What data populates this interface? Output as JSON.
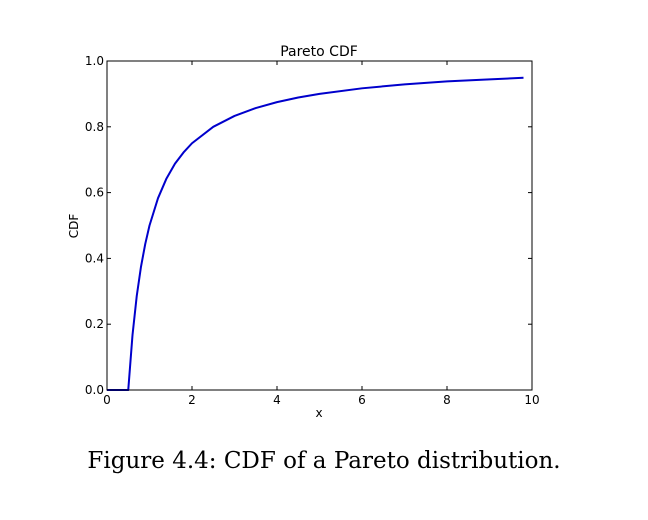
{
  "caption": "Figure 4.4: CDF of a Pareto distribution.",
  "chart_data": {
    "type": "line",
    "title": "Pareto CDF",
    "xlabel": "x",
    "ylabel": "CDF",
    "xlim": [
      0,
      10
    ],
    "ylim": [
      0,
      1.0
    ],
    "xticks": [
      0,
      2,
      4,
      6,
      8,
      10
    ],
    "yticks": [
      0.0,
      0.2,
      0.4,
      0.6,
      0.8,
      1.0
    ],
    "xtick_labels": [
      "0",
      "2",
      "4",
      "6",
      "8",
      "10"
    ],
    "ytick_labels": [
      "0.0",
      "0.2",
      "0.4",
      "0.6",
      "0.8",
      "1.0"
    ],
    "grid": false,
    "line_color": "#0000cc",
    "series": [
      {
        "x": [
          0,
          0.5,
          0.6,
          0.7,
          0.8,
          0.9,
          1.0,
          1.2,
          1.4,
          1.6,
          1.8,
          2.0,
          2.5,
          3.0,
          3.5,
          4.0,
          4.5,
          5.0,
          6.0,
          7.0,
          8.0,
          9.0,
          9.8
        ],
        "y": [
          0.0,
          0.0,
          0.167,
          0.286,
          0.375,
          0.444,
          0.5,
          0.583,
          0.643,
          0.688,
          0.722,
          0.75,
          0.8,
          0.833,
          0.857,
          0.875,
          0.889,
          0.9,
          0.917,
          0.929,
          0.938,
          0.944,
          0.949
        ]
      }
    ]
  }
}
